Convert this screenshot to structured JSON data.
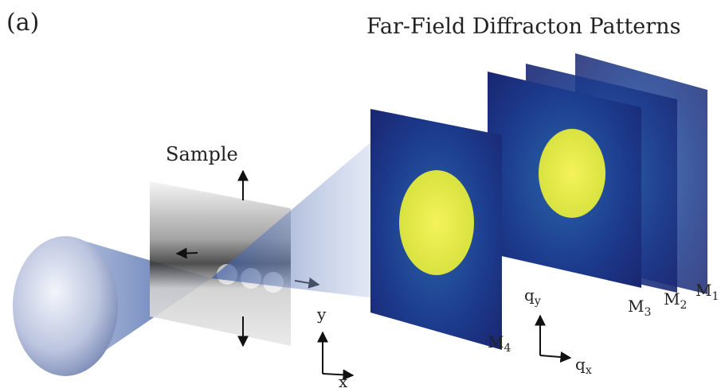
{
  "panel_label": "(a)",
  "title": "Far-Field Diffracton Patterns",
  "sample_label": "Sample",
  "sample_axes": {
    "y": "y",
    "x": "x"
  },
  "detector_axes": {
    "qy": {
      "base": "q",
      "sub": "y"
    },
    "qx": {
      "base": "q",
      "sub": "x"
    }
  },
  "patterns": [
    {
      "base": "M",
      "sub": "4"
    },
    {
      "base": "M",
      "sub": "3"
    },
    {
      "base": "M",
      "sub": "2"
    },
    {
      "base": "M",
      "sub": "1"
    }
  ]
}
